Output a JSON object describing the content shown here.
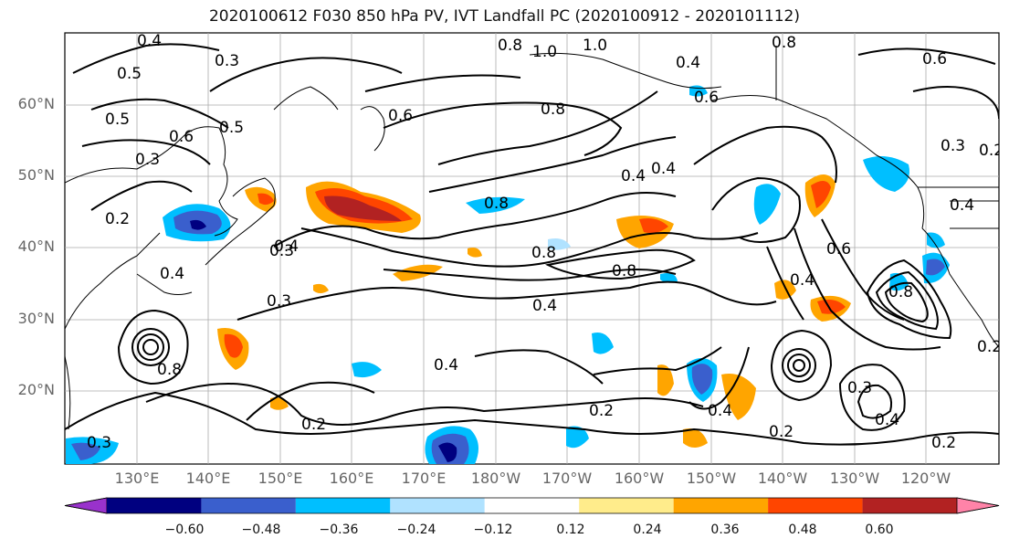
{
  "title": "2020100612 F030 850 hPa PV, IVT Landfall PC (2020100912 - 2020101112)",
  "lat_labels": [
    "60°N",
    "50°N",
    "40°N",
    "30°N",
    "20°N"
  ],
  "lon_labels": [
    "130°E",
    "140°E",
    "150°E",
    "160°E",
    "170°E",
    "180°W",
    "170°W",
    "160°W",
    "150°W",
    "140°W",
    "130°W",
    "120°W"
  ],
  "contour_labels": [
    "0.4",
    "0.3",
    "0.5",
    "0.5",
    "0.6",
    "0.3",
    "0.5",
    "0.3",
    "0.2",
    "0.4",
    "0.6",
    "0.8",
    "1.0",
    "1.0",
    "0.8",
    "0.4",
    "0.6",
    "0.8",
    "0.4",
    "0.6",
    "0.3",
    "0.2",
    "0.4",
    "0.8",
    "0.8",
    "0.8",
    "0.4",
    "0.3",
    "0.4",
    "0.2",
    "0.4",
    "0.4",
    "0.2",
    "0.4",
    "0.2",
    "0.4",
    "0.6",
    "0.8",
    "0.3",
    "0.4",
    "0.2",
    "0.8",
    "0.3",
    "0.2"
  ],
  "colorbar": {
    "ticks": [
      "−0.60",
      "−0.48",
      "−0.36",
      "−0.24",
      "−0.12",
      "0.12",
      "0.24",
      "0.36",
      "0.48",
      "0.60"
    ],
    "colors": [
      "#9932cc",
      "#000080",
      "#3a5fcd",
      "#00bfff",
      "#b0e2ff",
      "#ffffff",
      "#ffec8b",
      "#ffa500",
      "#ff4500",
      "#b22222",
      "#ff83a8"
    ]
  }
}
